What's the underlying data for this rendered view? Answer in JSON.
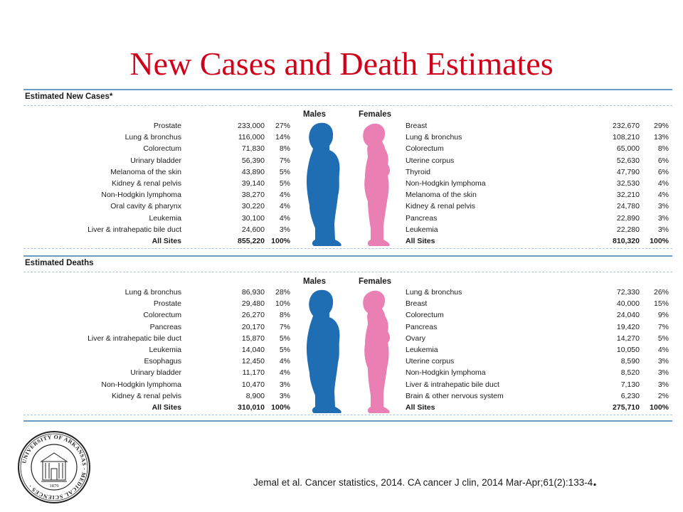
{
  "title": "New Cases and Death Estimates",
  "citation": "Jemal et al. Cancer statistics, 2014.  CA cancer J clin, 2014 Mar-Apr;61(2):133-4",
  "citation_period": ".",
  "seal_text": "UNIVERSITY OF ARKANSAS MEDICAL SCIENCES 1879",
  "colors": {
    "title": "#d0021b",
    "male": "#1f6db3",
    "female": "#ea7fb4",
    "rule": "#6a9bc4"
  },
  "new_cases": {
    "title": "Estimated New Cases*",
    "males_header": "Males",
    "females_header": "Females",
    "rows": [
      {
        "m_site": "Prostate",
        "m_num": "233,000",
        "m_pct": "27%",
        "f_site": "Breast",
        "f_num": "232,670",
        "f_pct": "29%"
      },
      {
        "m_site": "Lung & bronchus",
        "m_num": "116,000",
        "m_pct": "14%",
        "f_site": "Lung & bronchus",
        "f_num": "108,210",
        "f_pct": "13%"
      },
      {
        "m_site": "Colorectum",
        "m_num": "71,830",
        "m_pct": "8%",
        "f_site": "Colorectum",
        "f_num": "65,000",
        "f_pct": "8%"
      },
      {
        "m_site": "Urinary bladder",
        "m_num": "56,390",
        "m_pct": "7%",
        "f_site": "Uterine corpus",
        "f_num": "52,630",
        "f_pct": "6%"
      },
      {
        "m_site": "Melanoma of the skin",
        "m_num": "43,890",
        "m_pct": "5%",
        "f_site": "Thyroid",
        "f_num": "47,790",
        "f_pct": "6%"
      },
      {
        "m_site": "Kidney & renal pelvis",
        "m_num": "39,140",
        "m_pct": "5%",
        "f_site": "Non-Hodgkin lymphoma",
        "f_num": "32,530",
        "f_pct": "4%"
      },
      {
        "m_site": "Non-Hodgkin lymphoma",
        "m_num": "38,270",
        "m_pct": "4%",
        "f_site": "Melanoma of the skin",
        "f_num": "32,210",
        "f_pct": "4%"
      },
      {
        "m_site": "Oral cavity & pharynx",
        "m_num": "30,220",
        "m_pct": "4%",
        "f_site": "Kidney & renal pelvis",
        "f_num": "24,780",
        "f_pct": "3%"
      },
      {
        "m_site": "Leukemia",
        "m_num": "30,100",
        "m_pct": "4%",
        "f_site": "Pancreas",
        "f_num": "22,890",
        "f_pct": "3%"
      },
      {
        "m_site": "Liver & intrahepatic bile duct",
        "m_num": "24,600",
        "m_pct": "3%",
        "f_site": "Leukemia",
        "f_num": "22,280",
        "f_pct": "3%"
      }
    ],
    "total": {
      "m_site": "All Sites",
      "m_num": "855,220",
      "m_pct": "100%",
      "f_site": "All Sites",
      "f_num": "810,320",
      "f_pct": "100%"
    }
  },
  "deaths": {
    "title": "Estimated Deaths",
    "males_header": "Males",
    "females_header": "Females",
    "rows": [
      {
        "m_site": "Lung & bronchus",
        "m_num": "86,930",
        "m_pct": "28%",
        "f_site": "Lung & bronchus",
        "f_num": "72,330",
        "f_pct": "26%"
      },
      {
        "m_site": "Prostate",
        "m_num": "29,480",
        "m_pct": "10%",
        "f_site": "Breast",
        "f_num": "40,000",
        "f_pct": "15%"
      },
      {
        "m_site": "Colorectum",
        "m_num": "26,270",
        "m_pct": "8%",
        "f_site": "Colorectum",
        "f_num": "24,040",
        "f_pct": "9%"
      },
      {
        "m_site": "Pancreas",
        "m_num": "20,170",
        "m_pct": "7%",
        "f_site": "Pancreas",
        "f_num": "19,420",
        "f_pct": "7%"
      },
      {
        "m_site": "Liver & intrahepatic bile duct",
        "m_num": "15,870",
        "m_pct": "5%",
        "f_site": "Ovary",
        "f_num": "14,270",
        "f_pct": "5%"
      },
      {
        "m_site": "Leukemia",
        "m_num": "14,040",
        "m_pct": "5%",
        "f_site": "Leukemia",
        "f_num": "10,050",
        "f_pct": "4%"
      },
      {
        "m_site": "Esophagus",
        "m_num": "12,450",
        "m_pct": "4%",
        "f_site": "Uterine corpus",
        "f_num": "8,590",
        "f_pct": "3%"
      },
      {
        "m_site": "Urinary bladder",
        "m_num": "11,170",
        "m_pct": "4%",
        "f_site": "Non-Hodgkin lymphoma",
        "f_num": "8,520",
        "f_pct": "3%"
      },
      {
        "m_site": "Non-Hodgkin lymphoma",
        "m_num": "10,470",
        "m_pct": "3%",
        "f_site": "Liver & intrahepatic bile duct",
        "f_num": "7,130",
        "f_pct": "3%"
      },
      {
        "m_site": "Kidney & renal pelvis",
        "m_num": "8,900",
        "m_pct": "3%",
        "f_site": "Brain & other nervous system",
        "f_num": "6,230",
        "f_pct": "2%"
      }
    ],
    "total": {
      "m_site": "All Sites",
      "m_num": "310,010",
      "m_pct": "100%",
      "f_site": "All Sites",
      "f_num": "275,710",
      "f_pct": "100%"
    }
  }
}
